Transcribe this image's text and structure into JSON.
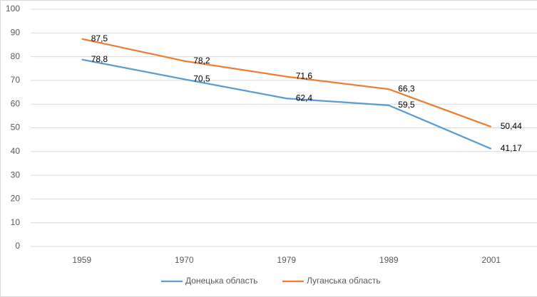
{
  "chart_data": {
    "type": "line",
    "categories": [
      "1959",
      "1970",
      "1979",
      "1989",
      "2001"
    ],
    "series": [
      {
        "name": "Донецька область",
        "color": "#5b9bd5",
        "values": [
          78.8,
          70.5,
          62.4,
          59.5,
          41.17
        ],
        "value_labels": [
          "78,8",
          "70,5",
          "62,4",
          "59,5",
          "41,17"
        ]
      },
      {
        "name": "Луганська область",
        "color": "#ed7d31",
        "values": [
          87.5,
          78.2,
          71.6,
          66.3,
          50.44
        ],
        "value_labels": [
          "87,5",
          "78,2",
          "71,6",
          "66,3",
          "50,44"
        ]
      }
    ],
    "ylim": [
      0,
      100
    ],
    "yticks": [
      0,
      10,
      20,
      30,
      40,
      50,
      60,
      70,
      80,
      90,
      100
    ],
    "grid": true,
    "legend": "bottom"
  }
}
